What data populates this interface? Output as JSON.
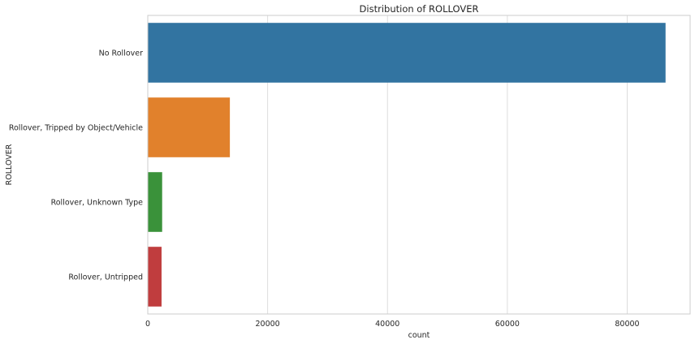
{
  "chart_data": {
    "type": "bar",
    "orientation": "horizontal",
    "title": "Distribution of ROLLOVER",
    "xlabel": "count",
    "ylabel": "ROLLOVER",
    "categories": [
      "No Rollover",
      "Rollover, Tripped by Object/Vehicle",
      "Rollover, Unknown Type",
      "Rollover, Untripped"
    ],
    "values": [
      86400,
      13700,
      2400,
      2300
    ],
    "colors": [
      "#3274a1",
      "#e1812c",
      "#3a923a",
      "#c03d3e"
    ],
    "xlim": [
      0,
      90500
    ],
    "xticks": [
      0,
      20000,
      40000,
      60000,
      80000
    ],
    "xtick_labels": [
      "0",
      "20000",
      "40000",
      "60000",
      "80000"
    ],
    "grid": "vertical"
  }
}
